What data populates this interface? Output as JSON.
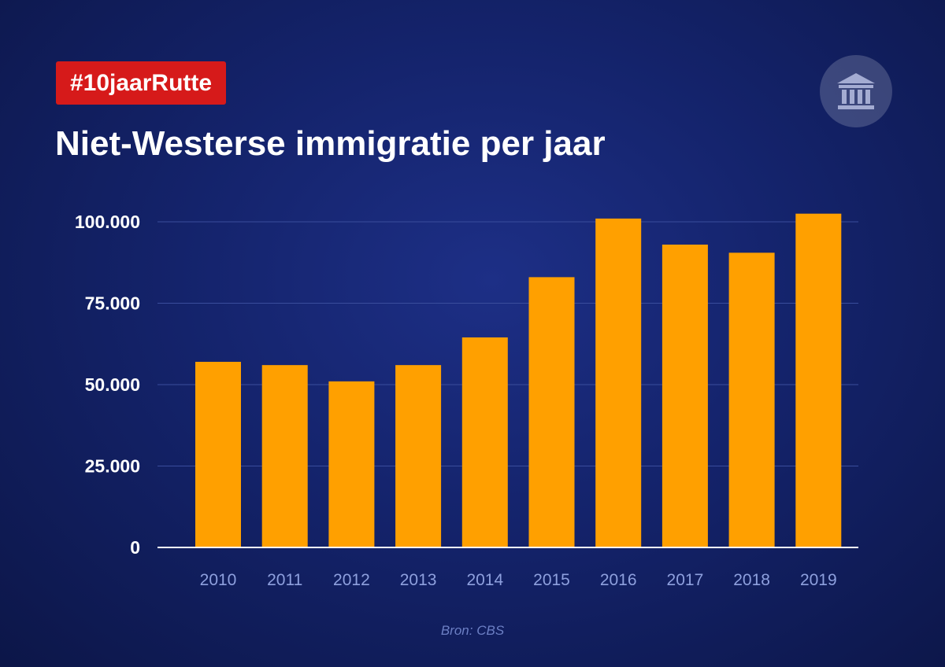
{
  "hashtag": "#10jaarRutte",
  "logo_icon": "government-building-icon",
  "source": "Bron: CBS",
  "colors": {
    "bar": "#ffa000",
    "hashtag_background": "#d61a1a",
    "gridline": "#3a4d9c",
    "axis": "#ffffff"
  },
  "chart_data": {
    "type": "bar",
    "title": "Niet-Westerse immigratie per jaar",
    "xlabel": "",
    "ylabel": "",
    "categories": [
      "2010",
      "2011",
      "2012",
      "2013",
      "2014",
      "2015",
      "2016",
      "2017",
      "2018",
      "2019"
    ],
    "values": [
      57000,
      56000,
      51000,
      56000,
      64500,
      83000,
      101000,
      93000,
      90500,
      102500
    ],
    "ylim": [
      0,
      100000
    ],
    "yticks": [
      0,
      25000,
      50000,
      75000,
      100000
    ],
    "ytick_labels": [
      "0",
      "25.000",
      "50.000",
      "75.000",
      "100.000"
    ],
    "grid": true,
    "legend": "none"
  }
}
